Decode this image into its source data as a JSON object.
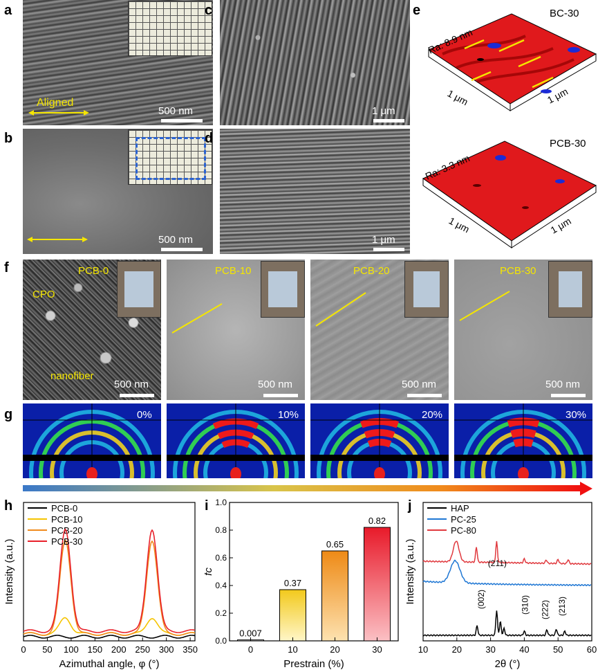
{
  "labels": {
    "a": "a",
    "b": "b",
    "c": "c",
    "d": "d",
    "e": "e",
    "f": "f",
    "g": "g",
    "h": "h",
    "i": "i",
    "j": "j"
  },
  "sem_a": {
    "scale": "500 nm",
    "arrow_text": "Aligned"
  },
  "sem_b": {
    "scale": "500 nm"
  },
  "sem_c": {
    "scale": "1 μm"
  },
  "sem_d": {
    "scale": "1 μm"
  },
  "afm_top": {
    "sample": "BC-30",
    "ra": "Ra: 8.9 nm",
    "axis1": "1 μm",
    "axis2": "1 μm"
  },
  "afm_bottom": {
    "sample": "PCB-30",
    "ra": "Ra: 3.3 nm",
    "axis1": "1 μm",
    "axis2": "1 μm"
  },
  "row_f": [
    {
      "sample": "PCB-0",
      "scale": "500 nm",
      "tag1": "CPO",
      "tag2": "nanofiber"
    },
    {
      "sample": "PCB-10",
      "scale": "500 nm"
    },
    {
      "sample": "PCB-20",
      "scale": "500 nm"
    },
    {
      "sample": "PCB-30",
      "scale": "500 nm"
    }
  ],
  "row_g": [
    "0%",
    "10%",
    "20%",
    "30%"
  ],
  "chart_data": [
    {
      "type": "line",
      "panel": "h",
      "xlabel": "Azimuthal angle, φ (°)",
      "ylabel": "Intensity (a.u.)",
      "xlim": [
        0,
        360
      ],
      "xticks": [
        0,
        50,
        100,
        150,
        200,
        250,
        300,
        350
      ],
      "legend": "top-left",
      "series": [
        {
          "name": "PCB-0",
          "color": "#000000",
          "peak": 0.0,
          "base": 0.03
        },
        {
          "name": "PCB-10",
          "color": "#f5c400",
          "peak": 0.12,
          "base": 0.05
        },
        {
          "name": "PCB-20",
          "color": "#f08a1c",
          "peak": 0.68,
          "base": 0.05
        },
        {
          "name": "PCB-30",
          "color": "#e8202a",
          "peak": 0.74,
          "base": 0.07
        }
      ]
    },
    {
      "type": "bar",
      "panel": "i",
      "xlabel": "Prestrain (%)",
      "ylabel": "fc",
      "categories": [
        "0",
        "10",
        "20",
        "30"
      ],
      "values": [
        0.007,
        0.37,
        0.65,
        0.82
      ],
      "value_labels": [
        "0.007",
        "0.37",
        "0.65",
        "0.82"
      ],
      "ylim": [
        0,
        1.0
      ],
      "yticks": [
        "0.0",
        "0.2",
        "0.4",
        "0.6",
        "0.8",
        "1.0"
      ]
    },
    {
      "type": "line",
      "panel": "j",
      "xlabel": "2θ (°)",
      "ylabel": "Intensity (a.u.)",
      "xlim": [
        10,
        60
      ],
      "xticks": [
        10,
        20,
        30,
        40,
        50,
        60
      ],
      "legend": "top-left",
      "series": [
        {
          "name": "HAP",
          "color": "#000000"
        },
        {
          "name": "PC-25",
          "color": "#1f77d4"
        },
        {
          "name": "PC-80",
          "color": "#e0393e"
        }
      ],
      "annotations": [
        "(211)",
        "(002)",
        "(310)",
        "(222)",
        "(213)"
      ]
    }
  ]
}
